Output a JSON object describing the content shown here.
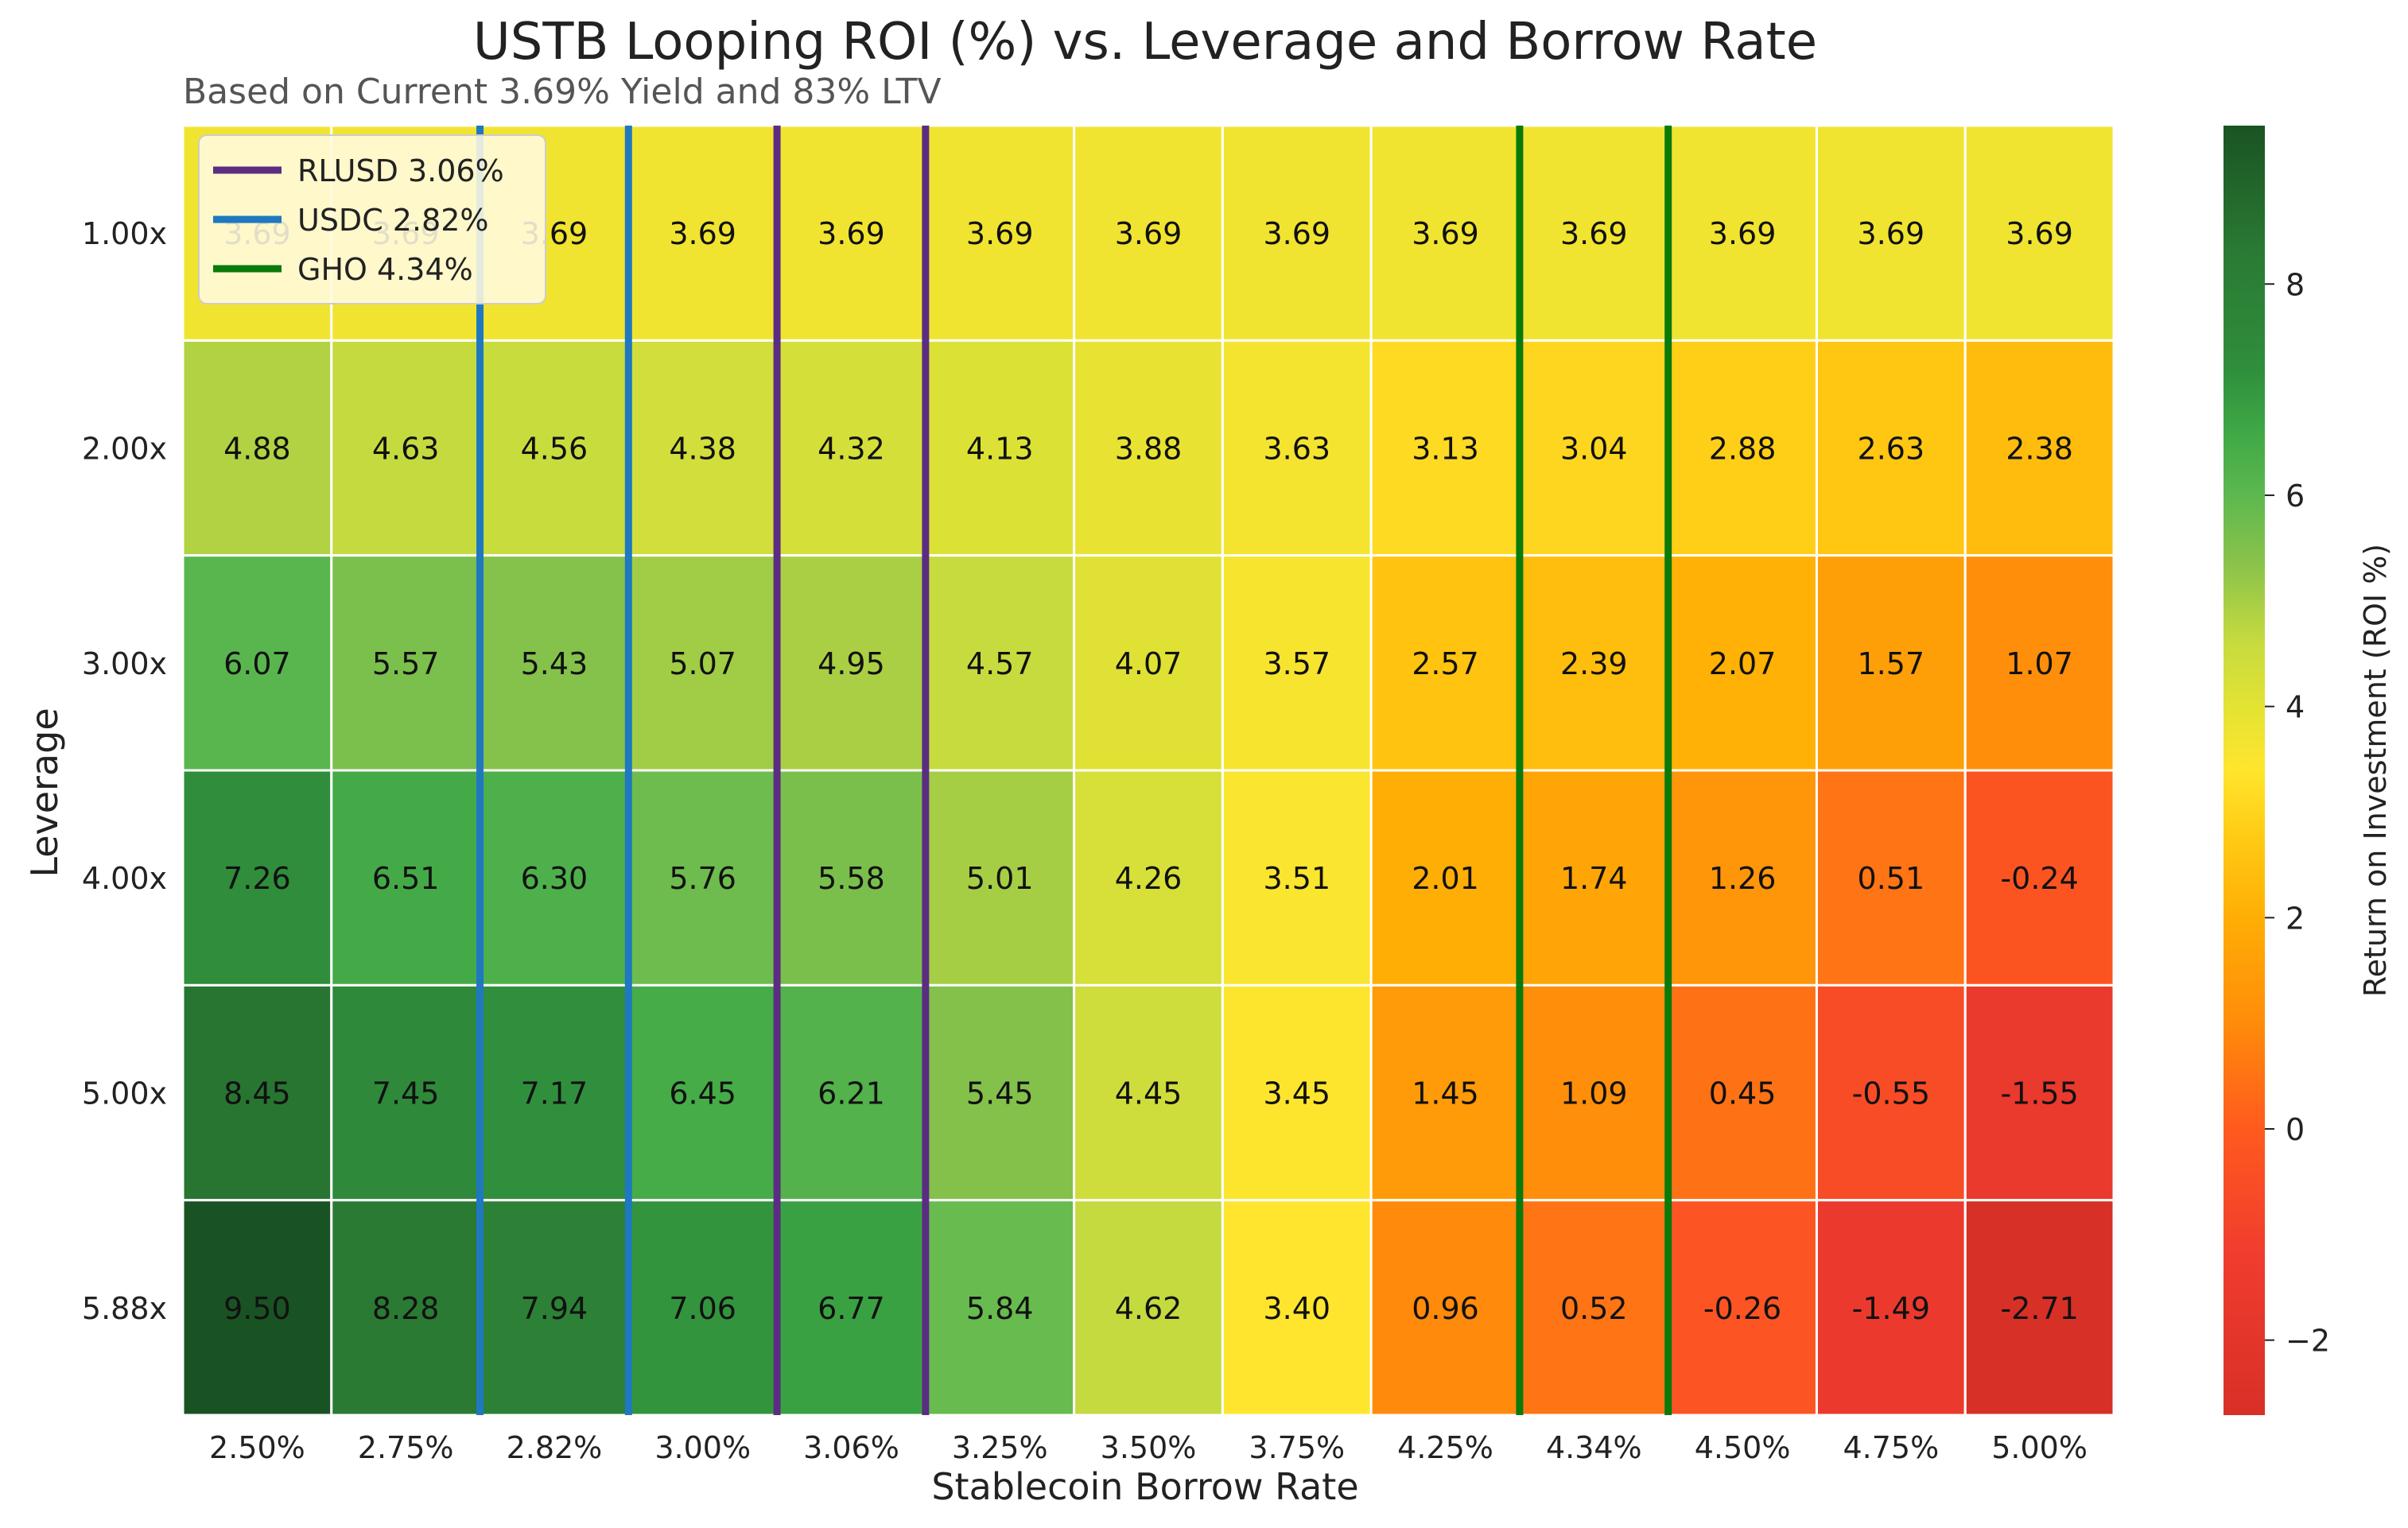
{
  "chart_data": {
    "type": "heatmap",
    "title": "USTB Looping ROI (%) vs. Leverage and Borrow Rate",
    "subtitle": "Based on Current 3.69% Yield and 83% LTV",
    "xlabel": "Stablecoin Borrow Rate",
    "ylabel": "Leverage",
    "x_categories": [
      "2.50%",
      "2.75%",
      "2.82%",
      "3.00%",
      "3.06%",
      "3.25%",
      "3.50%",
      "3.75%",
      "4.25%",
      "4.34%",
      "4.50%",
      "4.75%",
      "5.00%"
    ],
    "y_categories": [
      "1.00x",
      "2.00x",
      "3.00x",
      "4.00x",
      "5.00x",
      "5.88x"
    ],
    "values": [
      [
        3.69,
        3.69,
        3.69,
        3.69,
        3.69,
        3.69,
        3.69,
        3.69,
        3.69,
        3.69,
        3.69,
        3.69,
        3.69
      ],
      [
        4.88,
        4.63,
        4.56,
        4.38,
        4.32,
        4.13,
        3.88,
        3.63,
        3.13,
        3.04,
        2.88,
        2.63,
        2.38
      ],
      [
        6.07,
        5.57,
        5.43,
        5.07,
        4.95,
        4.57,
        4.07,
        3.57,
        2.57,
        2.39,
        2.07,
        1.57,
        1.07
      ],
      [
        7.26,
        6.51,
        6.3,
        5.76,
        5.58,
        5.01,
        4.26,
        3.51,
        2.01,
        1.74,
        1.26,
        0.51,
        -0.24
      ],
      [
        8.45,
        7.45,
        7.17,
        6.45,
        6.21,
        5.45,
        4.45,
        3.45,
        1.45,
        1.09,
        0.45,
        -0.55,
        -1.55
      ],
      [
        9.5,
        8.28,
        7.94,
        7.06,
        6.77,
        5.84,
        4.62,
        3.4,
        0.96,
        0.52,
        -0.26,
        -1.49,
        -2.71
      ]
    ],
    "value_labels": [
      [
        "3.69",
        "3.69",
        "3.69",
        "3.69",
        "3.69",
        "3.69",
        "3.69",
        "3.69",
        "3.69",
        "3.69",
        "3.69",
        "3.69",
        "3.69"
      ],
      [
        "4.88",
        "4.63",
        "4.56",
        "4.38",
        "4.32",
        "4.13",
        "3.88",
        "3.63",
        "3.13",
        "3.04",
        "2.88",
        "2.63",
        "2.38"
      ],
      [
        "6.07",
        "5.57",
        "5.43",
        "5.07",
        "4.95",
        "4.57",
        "4.07",
        "3.57",
        "2.57",
        "2.39",
        "2.07",
        "1.57",
        "1.07"
      ],
      [
        "7.26",
        "6.51",
        "6.30",
        "5.76",
        "5.58",
        "5.01",
        "4.26",
        "3.51",
        "2.01",
        "1.74",
        "1.26",
        "0.51",
        "-0.24"
      ],
      [
        "8.45",
        "7.45",
        "7.17",
        "6.45",
        "6.21",
        "5.45",
        "4.45",
        "3.45",
        "1.45",
        "1.09",
        "0.45",
        "-0.55",
        "-1.55"
      ],
      [
        "9.50",
        "8.28",
        "7.94",
        "7.06",
        "6.77",
        "5.84",
        "4.62",
        "3.40",
        "0.96",
        "0.52",
        "-0.26",
        "-1.49",
        "-2.71"
      ]
    ],
    "colorbar": {
      "label": "Return on Investment (ROI %)",
      "vmin": -2.71,
      "vmax": 9.5,
      "ticks": [
        -2,
        0,
        2,
        4,
        6,
        8
      ],
      "tick_labels": [
        "−2",
        "0",
        "2",
        "4",
        "6",
        "8"
      ],
      "colormap": [
        {
          "v": -2.71,
          "color": "#d73027"
        },
        {
          "v": -1.2,
          "color": "#f03c2f"
        },
        {
          "v": 0.0,
          "color": "#ff5a1e"
        },
        {
          "v": 1.0,
          "color": "#ff8c0a"
        },
        {
          "v": 2.0,
          "color": "#ffae05"
        },
        {
          "v": 2.8,
          "color": "#ffcc15"
        },
        {
          "v": 3.4,
          "color": "#ffe52e"
        },
        {
          "v": 4.0,
          "color": "#e2e333"
        },
        {
          "v": 4.6,
          "color": "#c7db3f"
        },
        {
          "v": 5.3,
          "color": "#8ec44a"
        },
        {
          "v": 6.0,
          "color": "#5db84f"
        },
        {
          "v": 6.6,
          "color": "#3fa846"
        },
        {
          "v": 7.2,
          "color": "#2f8e3c"
        },
        {
          "v": 8.3,
          "color": "#2a7a33"
        },
        {
          "v": 9.5,
          "color": "#1a5323"
        }
      ]
    },
    "reference_lines": [
      {
        "name": "RLUSD 3.06%",
        "rate": 3.06,
        "color": "#5b2d82",
        "between_categories": [
          3,
          4,
          4,
          5
        ]
      },
      {
        "name": "USDC 2.82%",
        "rate": 2.82,
        "color": "#1f78c0",
        "between_categories": [
          1,
          2,
          2,
          3
        ]
      },
      {
        "name": "GHO 4.34%",
        "rate": 4.34,
        "color": "#0a7a0a",
        "between_categories": [
          8,
          9,
          9,
          10
        ]
      }
    ],
    "legend": {
      "position": "top-left",
      "entries": [
        "RLUSD 3.06%",
        "USDC 2.82%",
        "GHO 4.34%"
      ]
    },
    "grid": false
  }
}
